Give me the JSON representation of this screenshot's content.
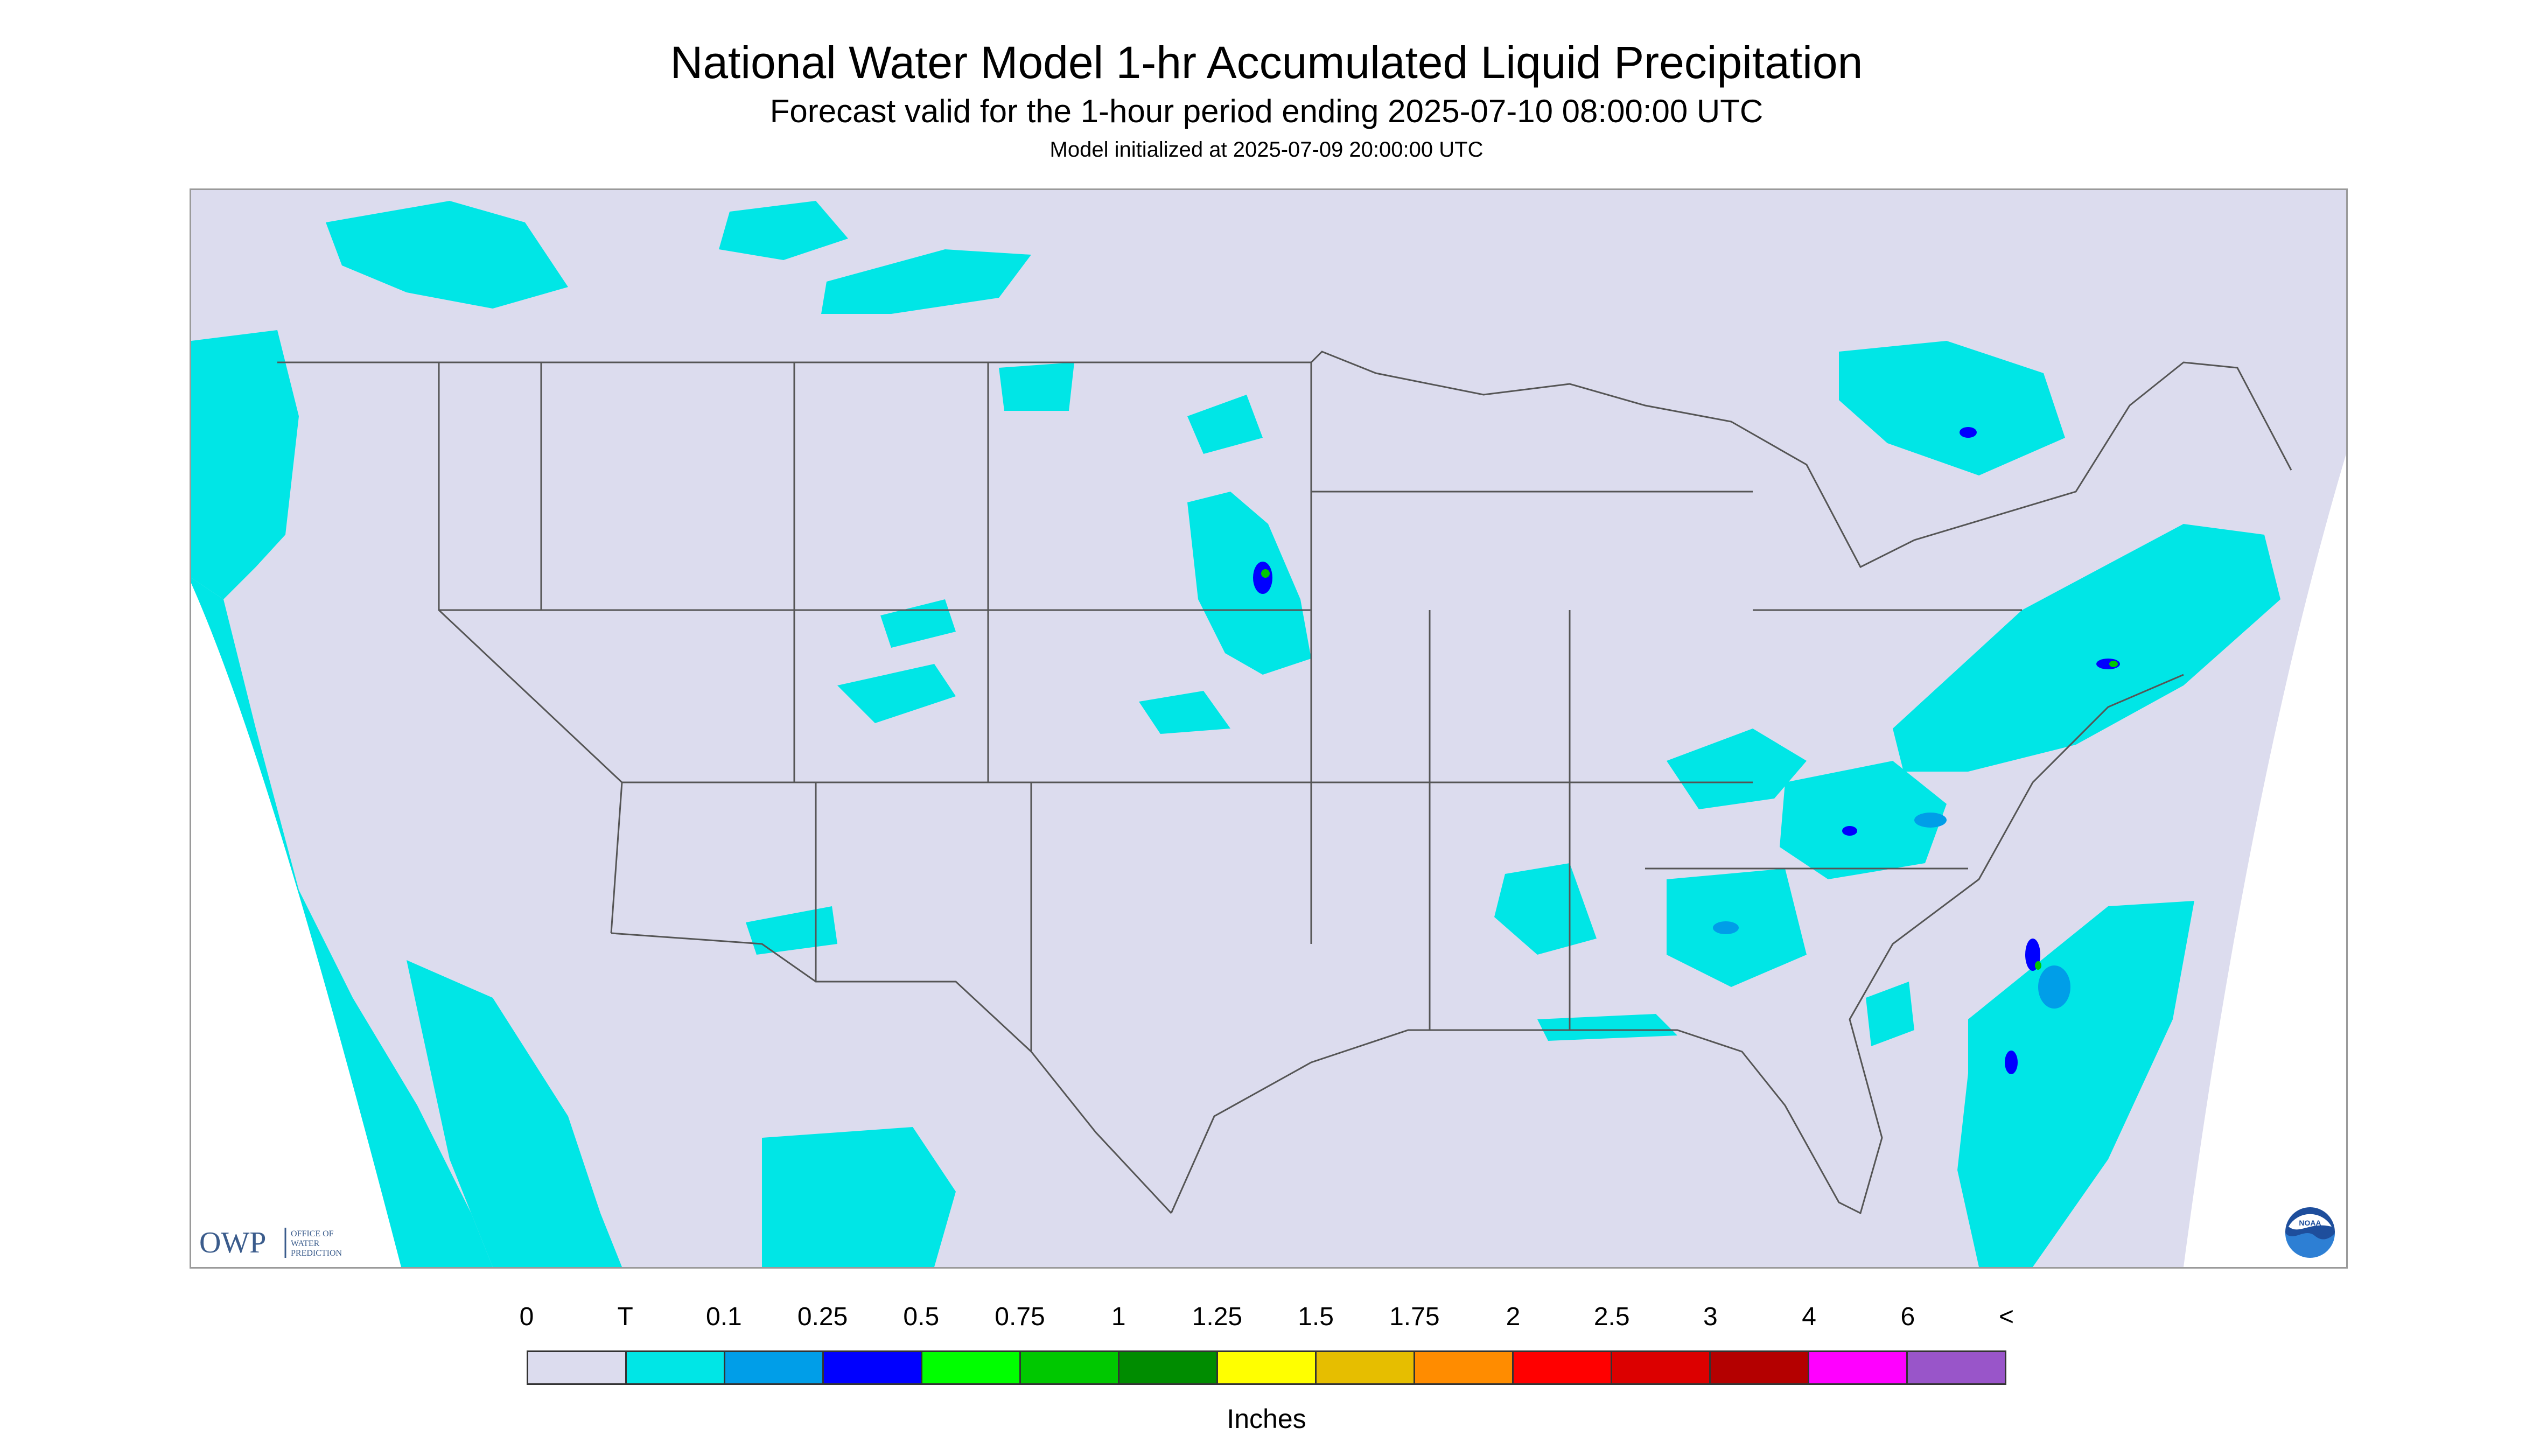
{
  "title": "National Water Model 1-hr Accumulated Liquid Precipitation",
  "subtitle": "Forecast valid for the 1-hour period ending 2025-07-10 08:00:00 UTC",
  "init_text": "Model initialized at 2025-07-09 20:00:00 UTC",
  "map": {
    "projection": "conic (CONUS)",
    "domain_fill_color": "#dcdcee",
    "outside_color": "#ffffff",
    "boundary_color": "#555555",
    "coverage": "Continental United States with portions of Canada, Mexico and adjacent ocean"
  },
  "logos": {
    "owp": {
      "text": "OWP",
      "lines": [
        "OFFICE OF",
        "WATER",
        "PREDICTION"
      ]
    },
    "noaa": {
      "text": "NOAA"
    }
  },
  "legend": {
    "labels": [
      "0",
      "T",
      "0.1",
      "0.25",
      "0.5",
      "0.75",
      "1",
      "1.25",
      "1.5",
      "1.75",
      "2",
      "2.5",
      "3",
      "4",
      "6",
      "<"
    ],
    "colors": [
      "#dcdcee",
      "#00e6e6",
      "#009ee8",
      "#0000ff",
      "#00ff00",
      "#00c800",
      "#008c00",
      "#ffff00",
      "#e6be00",
      "#ff8c00",
      "#ff0000",
      "#dc0000",
      "#b40000",
      "#ff00ff",
      "#9955c9"
    ],
    "units": "Inches"
  }
}
